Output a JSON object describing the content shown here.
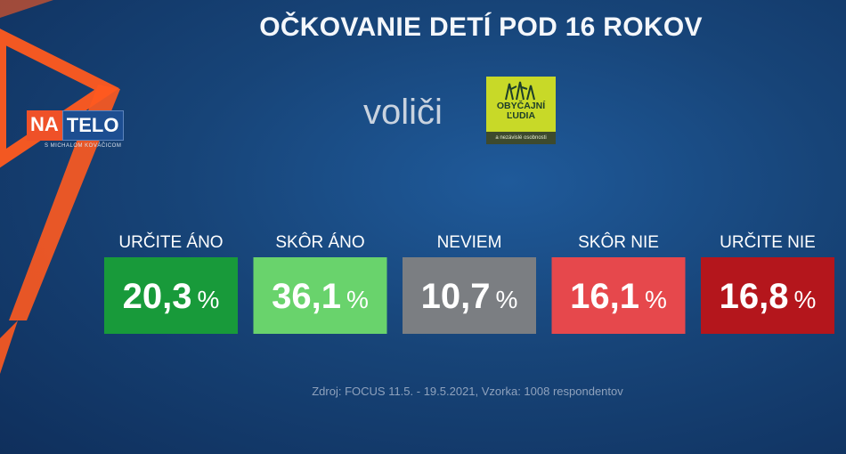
{
  "title": "OČKOVANIE DETÍ POD 16 ROKOV",
  "subtitle": "voliči",
  "party_logo": {
    "name": "OBYČAJNÍ ĽUDIA",
    "subtext": "a nezávislé osobnosti",
    "color": "#c8d928"
  },
  "show_logo": {
    "part1": "NA",
    "part2": "TELO",
    "subtext": "S MICHALOM KOVÁČICOM"
  },
  "chart_data": {
    "type": "bar",
    "categories": [
      "URČITE ÁNO",
      "SKÔR ÁNO",
      "NEVIEM",
      "SKÔR NIE",
      "URČITE NIE"
    ],
    "values": [
      20.3,
      36.1,
      10.7,
      16.1,
      16.8
    ],
    "display_values": [
      "20,3",
      "36,1",
      "10,7",
      "16,1",
      "16,8"
    ],
    "unit": "%",
    "colors": [
      "#189a3a",
      "#69d36c",
      "#7b7e82",
      "#e6484c",
      "#b4161c"
    ]
  },
  "source": "Zdroj: FOCUS 11.5. - 19.5.2021, Vzorka: 1008 respondentov"
}
